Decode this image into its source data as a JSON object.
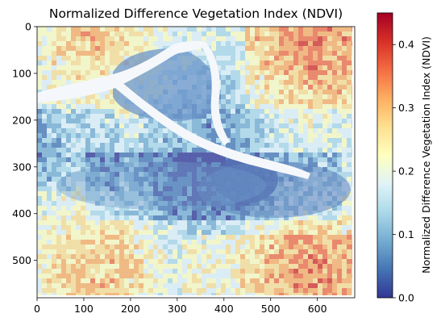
{
  "chart_data": {
    "type": "heatmap",
    "title": "Normalized Difference Vegetation Index (NDVI)",
    "xlabel": "",
    "ylabel": "",
    "x_ticks": [
      0,
      100,
      200,
      300,
      400,
      500,
      600
    ],
    "y_ticks": [
      0,
      100,
      200,
      300,
      400,
      500
    ],
    "xlim": [
      0,
      680
    ],
    "ylim": [
      580,
      0
    ],
    "colorbar": {
      "label": "Normalized Difference Vegetation Index (NDVI)",
      "range": [
        0.0,
        0.45
      ],
      "ticks": [
        "0.0",
        "0.1",
        "0.2",
        "0.3",
        "0.4"
      ],
      "tick_values": [
        0.0,
        0.1,
        0.2,
        0.3,
        0.4
      ],
      "colormap": "RdYlBu_r",
      "colors": [
        "#313695",
        "#4575b4",
        "#74add1",
        "#abd9e9",
        "#e0f3f8",
        "#ffffbf",
        "#fee090",
        "#fdae61",
        "#f46d43",
        "#d73027",
        "#a50026"
      ]
    },
    "features": [
      {
        "name": "river",
        "description_value": "no data (white)"
      },
      {
        "name": "water-body low NDVI region",
        "approx_value": 0.02
      }
    ]
  }
}
